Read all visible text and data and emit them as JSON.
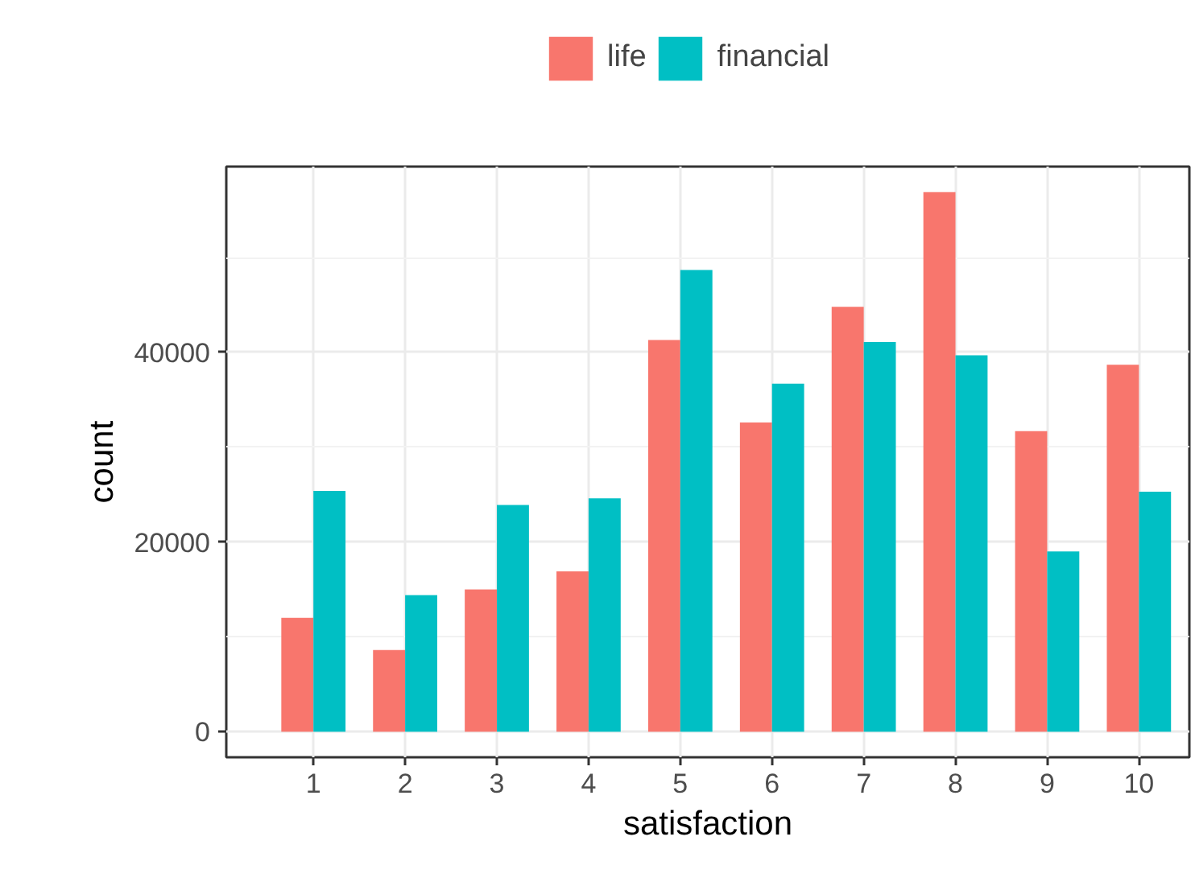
{
  "chart_data": {
    "type": "bar",
    "xlabel": "satisfaction",
    "ylabel": "count",
    "categories": [
      "1",
      "2",
      "3",
      "4",
      "5",
      "6",
      "7",
      "8",
      "9",
      "10"
    ],
    "series": [
      {
        "name": "life",
        "color": "#f8766d",
        "values": [
          12000,
          8600,
          15000,
          16900,
          41300,
          32600,
          44800,
          56900,
          31700,
          38700
        ]
      },
      {
        "name": "financial",
        "color": "#00bfc4",
        "values": [
          25400,
          14400,
          23900,
          24600,
          48700,
          36700,
          41100,
          39700,
          19000,
          25300
        ]
      }
    ],
    "ylim": [
      -2700,
      59600
    ],
    "yticks": [
      0,
      20000,
      40000
    ],
    "grid": true,
    "legend": "top"
  }
}
